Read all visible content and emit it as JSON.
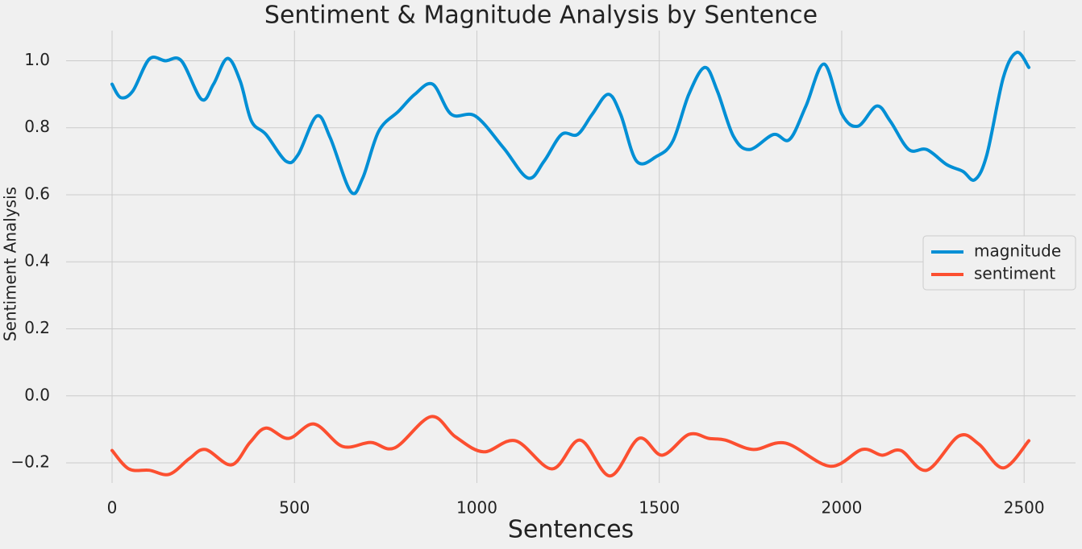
{
  "chart_data": {
    "type": "line",
    "title": "Sentiment & Magnitude Analysis by Sentence",
    "x_label": "Sentences",
    "y_label": "Sentiment Analysis",
    "xlim": [
      -126,
      2641
    ],
    "ylim": [
      -0.26,
      1.09
    ],
    "xticks": [
      0,
      500,
      1000,
      1500,
      2000,
      2500
    ],
    "yticks": [
      {
        "value": -0.2,
        "label": "−0.2"
      },
      {
        "value": 0,
        "label": "0.0"
      },
      {
        "value": 0.2,
        "label": "0.2"
      },
      {
        "value": 0.4,
        "label": "0.4"
      },
      {
        "value": 0.6,
        "label": "0.6"
      },
      {
        "value": 0.8,
        "label": "0.8"
      },
      {
        "value": 1,
        "label": "1.0"
      }
    ],
    "grid": true,
    "legend": "right",
    "series": [
      {
        "name": "magnitude",
        "color": "#008fd5",
        "x": [
          0,
          24,
          57,
          102,
          146,
          190,
          245,
          278,
          316,
          351,
          382,
          422,
          477,
          510,
          561,
          598,
          654,
          687,
          731,
          786,
          830,
          879,
          930,
          996,
          1073,
          1140,
          1184,
          1232,
          1276,
          1316,
          1360,
          1394,
          1438,
          1493,
          1537,
          1581,
          1625,
          1659,
          1703,
          1747,
          1813,
          1857,
          1902,
          1952,
          2001,
          2045,
          2096,
          2133,
          2184,
          2233,
          2288,
          2332,
          2365,
          2398,
          2443,
          2480,
          2513
        ],
        "values": [
          0.93,
          0.89,
          0.91,
          1.005,
          1.0,
          1.0,
          0.885,
          0.93,
          1.007,
          0.94,
          0.82,
          0.78,
          0.7,
          0.72,
          0.835,
          0.77,
          0.61,
          0.65,
          0.79,
          0.85,
          0.9,
          0.93,
          0.84,
          0.835,
          0.74,
          0.65,
          0.7,
          0.78,
          0.78,
          0.84,
          0.9,
          0.84,
          0.7,
          0.715,
          0.76,
          0.9,
          0.98,
          0.91,
          0.775,
          0.735,
          0.78,
          0.765,
          0.865,
          0.99,
          0.84,
          0.805,
          0.865,
          0.82,
          0.735,
          0.735,
          0.69,
          0.67,
          0.645,
          0.72,
          0.95,
          1.025,
          0.98
        ]
      },
      {
        "name": "sentiment",
        "color": "#fc4f30",
        "x": [
          0,
          46,
          102,
          157,
          212,
          256,
          327,
          378,
          422,
          484,
          554,
          632,
          709,
          775,
          874,
          941,
          1018,
          1106,
          1206,
          1283,
          1365,
          1444,
          1508,
          1581,
          1636,
          1681,
          1758,
          1846,
          1968,
          2056,
          2111,
          2162,
          2233,
          2321,
          2376,
          2443,
          2513
        ],
        "values": [
          -0.163,
          -0.218,
          -0.222,
          -0.234,
          -0.187,
          -0.16,
          -0.206,
          -0.139,
          -0.096,
          -0.127,
          -0.084,
          -0.151,
          -0.139,
          -0.155,
          -0.062,
          -0.122,
          -0.167,
          -0.134,
          -0.218,
          -0.132,
          -0.239,
          -0.127,
          -0.177,
          -0.115,
          -0.127,
          -0.132,
          -0.16,
          -0.141,
          -0.21,
          -0.16,
          -0.177,
          -0.163,
          -0.222,
          -0.12,
          -0.144,
          -0.215,
          -0.134
        ]
      }
    ]
  }
}
